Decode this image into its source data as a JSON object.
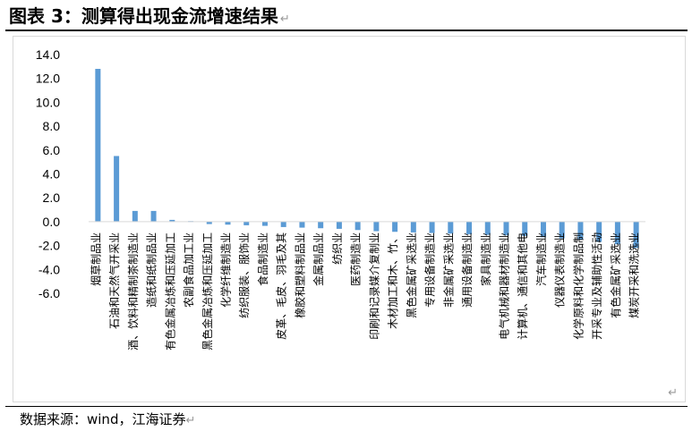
{
  "title": "图表 3：测算得出现金流增速结果",
  "source": "数据来源：wind，江海证券",
  "paragraph_mark": "↵",
  "chart_data": {
    "type": "bar",
    "title": "",
    "xlabel": "",
    "ylabel": "",
    "ylim": [
      -6.0,
      14.0
    ],
    "yticks": [
      "14.0",
      "12.0",
      "10.0",
      "8.0",
      "6.0",
      "4.0",
      "2.0",
      "0.0",
      "-2.0",
      "-4.0",
      "-6.0"
    ],
    "grid": false,
    "legend": "none",
    "bar_color": "#5b9bd5",
    "categories": [
      "烟草制品业",
      "石油和天然气开采业",
      "酒、饮料和精制茶制造业",
      "造纸和纸制品业",
      "有色金属冶炼和压延加工",
      "农副食品加工业",
      "黑色金属冶炼和压延加工",
      "化学纤维制造业",
      "纺织服装、服饰业",
      "食品制造业",
      "皮革、毛皮、羽毛及其",
      "橡胶和塑料制品业",
      "金属制品业",
      "纺织业",
      "医药制造业",
      "印刷和记录媒介复制业",
      "木材加工和木、竹、",
      "黑色金属矿采选业",
      "专用设备制造业",
      "非金属矿采选业",
      "通用设备制造业",
      "家具制造业",
      "电气机械和器材制造业",
      "计算机、通信和其他电",
      "汽车制造业",
      "仪器仪表制造业",
      "化学原料和化学制品制",
      "开采专业及辅助性活动",
      "有色金属矿采选业",
      "煤炭开采和洗选业"
    ],
    "values": [
      12.8,
      5.5,
      0.9,
      0.9,
      0.15,
      0.05,
      -0.2,
      -0.25,
      -0.3,
      -0.35,
      -0.45,
      -0.5,
      -0.55,
      -0.6,
      -0.7,
      -0.8,
      -0.85,
      -0.9,
      -0.95,
      -1.0,
      -1.05,
      -1.1,
      -1.15,
      -1.2,
      -1.3,
      -1.4,
      -1.5,
      -1.7,
      -1.9,
      -2.2
    ]
  }
}
